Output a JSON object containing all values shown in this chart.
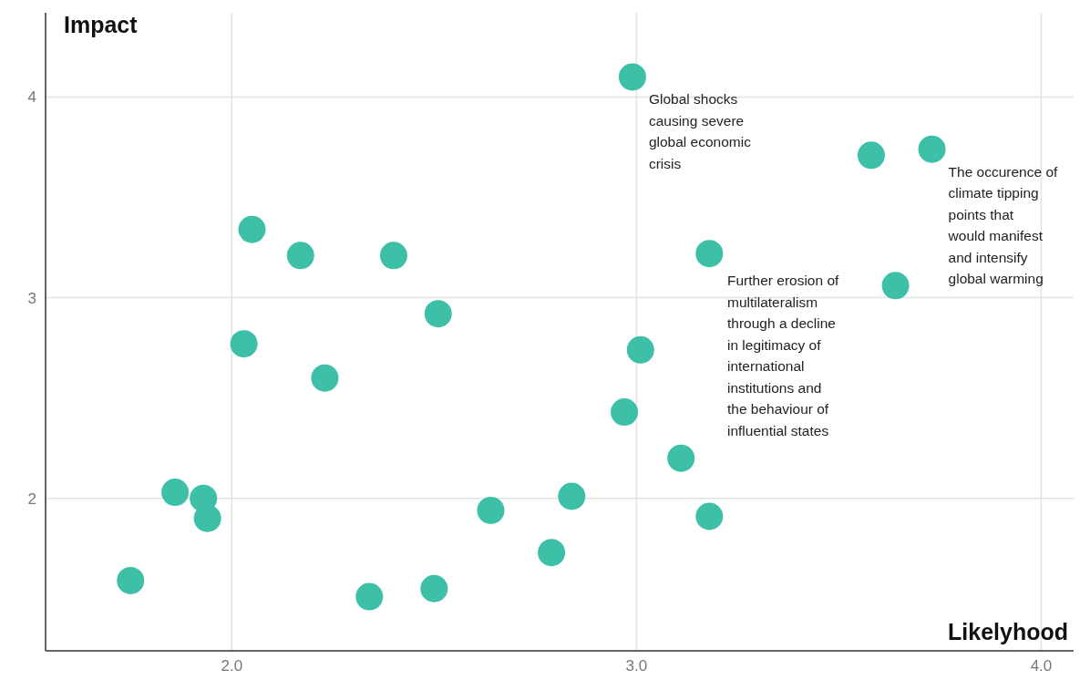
{
  "chart_data": {
    "type": "scatter",
    "xlabel": "Likelyhood",
    "ylabel": "Impact",
    "x": [
      2.99,
      3.58,
      3.73,
      2.05,
      2.17,
      2.4,
      2.51,
      2.03,
      2.23,
      3.18,
      3.64,
      3.01,
      2.97,
      3.11,
      3.18,
      2.84,
      2.64,
      2.79,
      2.5,
      2.34,
      1.86,
      1.93,
      1.94,
      1.75
    ],
    "values": [
      4.1,
      3.71,
      3.74,
      3.34,
      3.21,
      3.21,
      2.92,
      2.77,
      2.6,
      3.22,
      3.06,
      2.74,
      2.43,
      2.2,
      1.91,
      2.01,
      1.94,
      1.73,
      1.55,
      1.51,
      2.03,
      2.0,
      1.9,
      1.59
    ],
    "color": "#3dbfa8",
    "marker": "circle",
    "grid": true,
    "xlim": [
      1.54,
      4.08
    ],
    "ylim": [
      1.24,
      4.42
    ],
    "xticks": [
      {
        "value": 2,
        "label": "2.0"
      },
      {
        "value": 3,
        "label": "3.0"
      },
      {
        "value": 4,
        "label": "4.0"
      }
    ],
    "yticks": [
      2,
      3,
      4
    ],
    "annotations": [
      {
        "text": "Global shocks causing severe global economic crisis",
        "x": 2.99,
        "y": 4.1
      },
      "Further erosion of multilateralism through a decline in legitimacy of international institutions and the behaviour of influential states",
      {
        "text": "The occurence of climate tipping points that would manifest and intensify global warming",
        "x": 3.73,
        "y": 3.74
      }
    ]
  }
}
